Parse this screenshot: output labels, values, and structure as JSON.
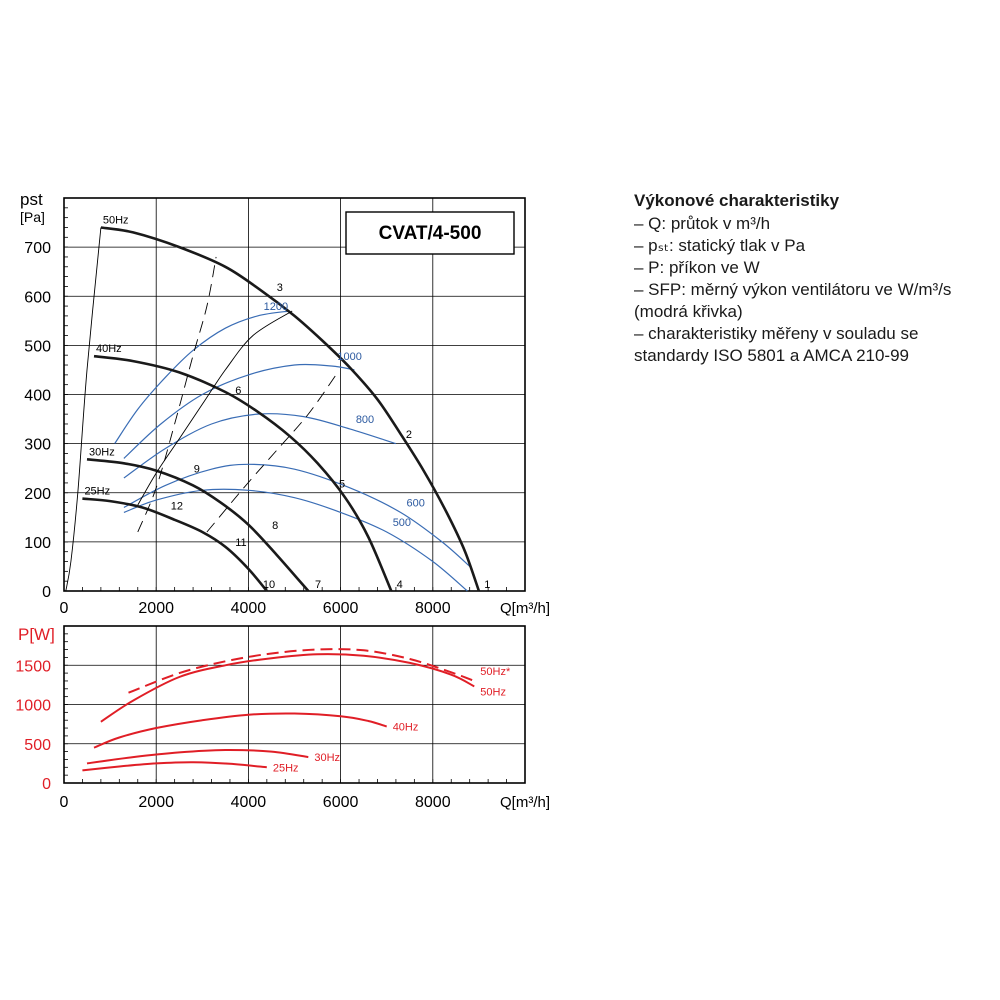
{
  "legend": {
    "title": "Výkonové charakteristiky",
    "items": [
      "– Q: průtok v m³/h",
      "– pₛₜ: statický tlak v Pa",
      "– P: příkon ve W",
      "– SFP: měrný výkon ventilátoru ve W/m³/s",
      "  (modrá křivka)",
      "– charakteristiky měřeny v souladu se",
      "  standardy ISO 5801 a AMCA 210-99"
    ]
  },
  "chart_data": [
    {
      "type": "line",
      "title": "CVAT/4-500",
      "ylabel_top": "pst",
      "ylabel_bottom": "[Pa]",
      "xlabel": "Q[m³/h]",
      "xlim": [
        0,
        10000
      ],
      "ylim": [
        0,
        800
      ],
      "xticks": [
        0,
        2000,
        4000,
        6000,
        8000
      ],
      "yticks": [
        0,
        100,
        200,
        300,
        400,
        500,
        600,
        700
      ],
      "grid": true,
      "series": [
        {
          "name": "50Hz",
          "kind": "fan-curve",
          "points": [
            [
              800,
              740
            ],
            [
              1500,
              730
            ],
            [
              2500,
              700
            ],
            [
              3500,
              660
            ],
            [
              4300,
              610
            ],
            [
              5000,
              560
            ],
            [
              5600,
              510
            ],
            [
              6200,
              455
            ],
            [
              6800,
              390
            ],
            [
              7300,
              320
            ],
            [
              7800,
              245
            ],
            [
              8300,
              160
            ],
            [
              8700,
              80
            ],
            [
              9000,
              0
            ]
          ]
        },
        {
          "name": "40Hz",
          "kind": "fan-curve",
          "points": [
            [
              650,
              478
            ],
            [
              1500,
              468
            ],
            [
              2500,
              445
            ],
            [
              3500,
              405
            ],
            [
              4200,
              365
            ],
            [
              4900,
              315
            ],
            [
              5500,
              260
            ],
            [
              6100,
              190
            ],
            [
              6600,
              110
            ],
            [
              7100,
              0
            ]
          ]
        },
        {
          "name": "30Hz",
          "kind": "fan-curve",
          "points": [
            [
              500,
              268
            ],
            [
              1300,
              260
            ],
            [
              2000,
              245
            ],
            [
              2800,
              215
            ],
            [
              3400,
              180
            ],
            [
              4000,
              135
            ],
            [
              4600,
              75
            ],
            [
              5300,
              0
            ]
          ]
        },
        {
          "name": "25Hz",
          "kind": "fan-curve",
          "points": [
            [
              400,
              188
            ],
            [
              1000,
              183
            ],
            [
              1700,
              170
            ],
            [
              2400,
              145
            ],
            [
              3000,
              120
            ],
            [
              3500,
              90
            ],
            [
              4000,
              45
            ],
            [
              4400,
              0
            ]
          ]
        },
        {
          "name": "",
          "kind": "max-flow",
          "points": [
            [
              40,
              0
            ],
            [
              150,
              60
            ],
            [
              300,
              200
            ],
            [
              500,
              450
            ],
            [
              800,
              740
            ]
          ]
        },
        {
          "name": "",
          "kind": "system-curve",
          "points": [
            [
              1600,
              175
            ],
            [
              2000,
              240
            ],
            [
              2500,
              310
            ],
            [
              3000,
              380
            ],
            [
              3500,
              450
            ],
            [
              4100,
              520
            ],
            [
              4950,
              570
            ]
          ]
        },
        {
          "name": "",
          "kind": "system-dashed",
          "points": [
            [
              1600,
              120
            ],
            [
              2000,
              210
            ],
            [
              2400,
              340
            ],
            [
              2800,
              480
            ],
            [
              3100,
              580
            ],
            [
              3300,
              680
            ]
          ]
        },
        {
          "name": "",
          "kind": "system-dashed",
          "points": [
            [
              3100,
              120
            ],
            [
              3900,
              210
            ],
            [
              4600,
              285
            ],
            [
              5300,
              360
            ],
            [
              5900,
              440
            ]
          ]
        }
      ],
      "sfp_curves": [
        {
          "label": "1200",
          "points": [
            [
              1100,
              300
            ],
            [
              1600,
              370
            ],
            [
              2200,
              435
            ],
            [
              2800,
              490
            ],
            [
              3500,
              535
            ],
            [
              4200,
              560
            ],
            [
              4900,
              570
            ]
          ]
        },
        {
          "label": "1000",
          "points": [
            [
              1300,
              270
            ],
            [
              2100,
              340
            ],
            [
              3000,
              400
            ],
            [
              4000,
              440
            ],
            [
              5000,
              460
            ],
            [
              5800,
              458
            ],
            [
              6300,
              450
            ]
          ]
        },
        {
          "label": "800",
          "points": [
            [
              1300,
              230
            ],
            [
              2200,
              290
            ],
            [
              3200,
              340
            ],
            [
              4200,
              360
            ],
            [
              5200,
              355
            ],
            [
              6200,
              330
            ],
            [
              7200,
              300
            ]
          ]
        },
        {
          "label": "600",
          "points": [
            [
              1300,
              170
            ],
            [
              2200,
              215
            ],
            [
              3200,
              248
            ],
            [
              4000,
              258
            ],
            [
              5000,
              248
            ],
            [
              6200,
              210
            ],
            [
              7300,
              160
            ],
            [
              8200,
              100
            ],
            [
              8800,
              50
            ]
          ]
        },
        {
          "label": "500",
          "points": [
            [
              1300,
              160
            ],
            [
              2000,
              185
            ],
            [
              3000,
              205
            ],
            [
              4000,
              205
            ],
            [
              5000,
              190
            ],
            [
              6000,
              160
            ],
            [
              7000,
              120
            ],
            [
              8000,
              60
            ],
            [
              8750,
              0
            ]
          ]
        }
      ],
      "annotations": [
        {
          "text": "1",
          "x": 9050,
          "y": 0
        },
        {
          "text": "2",
          "x": 7350,
          "y": 305
        },
        {
          "text": "3",
          "x": 4550,
          "y": 605
        },
        {
          "text": "4",
          "x": 7150,
          "y": 0
        },
        {
          "text": "5",
          "x": 5900,
          "y": 205
        },
        {
          "text": "6",
          "x": 3650,
          "y": 395
        },
        {
          "text": "7",
          "x": 5380,
          "y": 0
        },
        {
          "text": "8",
          "x": 4450,
          "y": 120
        },
        {
          "text": "9",
          "x": 2750,
          "y": 235
        },
        {
          "text": "10",
          "x": 4250,
          "y": 0
        },
        {
          "text": "11",
          "x": 3650,
          "y": 85
        },
        {
          "text": "12",
          "x": 2250,
          "y": 160
        }
      ]
    },
    {
      "type": "line",
      "title": "",
      "ylabel": "P[W]",
      "xlabel": "Q[m³/h]",
      "xlim": [
        0,
        10000
      ],
      "ylim": [
        0,
        2000
      ],
      "xticks": [
        0,
        2000,
        4000,
        6000,
        8000
      ],
      "yticks": [
        0,
        500,
        1000,
        1500
      ],
      "grid": true,
      "series": [
        {
          "name": "50Hz*",
          "dashed": true,
          "points": [
            [
              1400,
              1150
            ],
            [
              2500,
              1400
            ],
            [
              3500,
              1550
            ],
            [
              4500,
              1650
            ],
            [
              5500,
              1700
            ],
            [
              6500,
              1690
            ],
            [
              7500,
              1580
            ],
            [
              8400,
              1410
            ],
            [
              8900,
              1300
            ]
          ]
        },
        {
          "name": "50Hz",
          "dashed": false,
          "points": [
            [
              800,
              780
            ],
            [
              1500,
              1050
            ],
            [
              2500,
              1350
            ],
            [
              3500,
              1500
            ],
            [
              4500,
              1590
            ],
            [
              5500,
              1640
            ],
            [
              6500,
              1620
            ],
            [
              7500,
              1530
            ],
            [
              8400,
              1380
            ],
            [
              8900,
              1230
            ]
          ]
        },
        {
          "name": "40Hz",
          "dashed": false,
          "points": [
            [
              650,
              450
            ],
            [
              1200,
              580
            ],
            [
              2000,
              700
            ],
            [
              3000,
              800
            ],
            [
              4000,
              870
            ],
            [
              5000,
              885
            ],
            [
              6000,
              850
            ],
            [
              6600,
              790
            ],
            [
              7000,
              720
            ]
          ]
        },
        {
          "name": "30Hz",
          "dashed": false,
          "points": [
            [
              500,
              250
            ],
            [
              1500,
              330
            ],
            [
              2500,
              390
            ],
            [
              3500,
              420
            ],
            [
              4500,
              400
            ],
            [
              5300,
              330
            ]
          ]
        },
        {
          "name": "25Hz",
          "dashed": false,
          "points": [
            [
              400,
              160
            ],
            [
              1200,
              210
            ],
            [
              2000,
              250
            ],
            [
              2800,
              265
            ],
            [
              3600,
              245
            ],
            [
              4400,
              200
            ]
          ]
        }
      ]
    }
  ]
}
